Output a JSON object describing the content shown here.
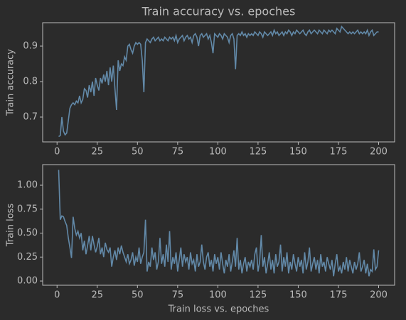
{
  "chart_data": [
    {
      "type": "line",
      "title": "Train accuracy vs. epoches",
      "ylabel": "Train accuracy",
      "color": "#6289a8",
      "xlim": [
        -8.95,
        209.95
      ],
      "ylim": [
        0.63,
        0.966
      ],
      "xticks": [
        0,
        25,
        50,
        75,
        100,
        125,
        150,
        175,
        200
      ],
      "yticks": [
        0.7,
        0.8,
        0.9
      ],
      "x": [
        1,
        2,
        3,
        4,
        5,
        6,
        7,
        8,
        9,
        10,
        11,
        12,
        13,
        14,
        15,
        16,
        17,
        18,
        19,
        20,
        21,
        22,
        23,
        24,
        25,
        26,
        27,
        28,
        29,
        30,
        31,
        32,
        33,
        34,
        35,
        36,
        37,
        38,
        39,
        40,
        41,
        42,
        43,
        44,
        45,
        46,
        47,
        48,
        49,
        50,
        51,
        52,
        53,
        54,
        55,
        56,
        57,
        58,
        59,
        60,
        61,
        62,
        63,
        64,
        65,
        66,
        67,
        68,
        69,
        70,
        71,
        72,
        73,
        74,
        75,
        76,
        77,
        78,
        79,
        80,
        81,
        82,
        83,
        84,
        85,
        86,
        87,
        88,
        89,
        90,
        91,
        92,
        93,
        94,
        95,
        96,
        97,
        98,
        99,
        100,
        101,
        102,
        103,
        104,
        105,
        106,
        107,
        108,
        109,
        110,
        111,
        112,
        113,
        114,
        115,
        116,
        117,
        118,
        119,
        120,
        121,
        122,
        123,
        124,
        125,
        126,
        127,
        128,
        129,
        130,
        131,
        132,
        133,
        134,
        135,
        136,
        137,
        138,
        139,
        140,
        141,
        142,
        143,
        144,
        145,
        146,
        147,
        148,
        149,
        150,
        151,
        152,
        153,
        154,
        155,
        156,
        157,
        158,
        159,
        160,
        161,
        162,
        163,
        164,
        165,
        166,
        167,
        168,
        169,
        170,
        171,
        172,
        173,
        174,
        175,
        176,
        177,
        178,
        179,
        180,
        181,
        182,
        183,
        184,
        185,
        186,
        187,
        188,
        189,
        190,
        191,
        192,
        193,
        194,
        195,
        196,
        197,
        198,
        199,
        200
      ],
      "values": [
        0.645,
        0.648,
        0.7,
        0.66,
        0.65,
        0.655,
        0.69,
        0.725,
        0.735,
        0.74,
        0.735,
        0.745,
        0.74,
        0.76,
        0.74,
        0.75,
        0.78,
        0.775,
        0.755,
        0.79,
        0.77,
        0.8,
        0.76,
        0.81,
        0.79,
        0.775,
        0.81,
        0.795,
        0.82,
        0.8,
        0.83,
        0.79,
        0.84,
        0.8,
        0.845,
        0.78,
        0.72,
        0.86,
        0.83,
        0.85,
        0.845,
        0.87,
        0.86,
        0.9,
        0.905,
        0.89,
        0.88,
        0.9,
        0.91,
        0.905,
        0.91,
        0.905,
        0.86,
        0.77,
        0.91,
        0.92,
        0.915,
        0.91,
        0.92,
        0.925,
        0.915,
        0.92,
        0.925,
        0.915,
        0.92,
        0.915,
        0.925,
        0.92,
        0.915,
        0.925,
        0.92,
        0.925,
        0.915,
        0.93,
        0.91,
        0.92,
        0.925,
        0.93,
        0.915,
        0.925,
        0.93,
        0.92,
        0.925,
        0.91,
        0.93,
        0.935,
        0.925,
        0.9,
        0.93,
        0.935,
        0.925,
        0.93,
        0.935,
        0.92,
        0.93,
        0.91,
        0.88,
        0.935,
        0.93,
        0.925,
        0.935,
        0.93,
        0.92,
        0.935,
        0.93,
        0.925,
        0.91,
        0.93,
        0.935,
        0.92,
        0.835,
        0.93,
        0.935,
        0.93,
        0.94,
        0.93,
        0.935,
        0.925,
        0.935,
        0.93,
        0.935,
        0.93,
        0.94,
        0.935,
        0.93,
        0.94,
        0.935,
        0.925,
        0.94,
        0.935,
        0.93,
        0.935,
        0.94,
        0.93,
        0.945,
        0.935,
        0.94,
        0.93,
        0.935,
        0.94,
        0.93,
        0.94,
        0.935,
        0.945,
        0.94,
        0.93,
        0.94,
        0.935,
        0.945,
        0.94,
        0.935,
        0.94,
        0.945,
        0.935,
        0.93,
        0.94,
        0.945,
        0.935,
        0.94,
        0.945,
        0.94,
        0.935,
        0.945,
        0.94,
        0.935,
        0.945,
        0.94,
        0.935,
        0.945,
        0.94,
        0.945,
        0.94,
        0.935,
        0.95,
        0.945,
        0.94,
        0.955,
        0.95,
        0.945,
        0.94,
        0.935,
        0.94,
        0.935,
        0.94,
        0.935,
        0.94,
        0.945,
        0.935,
        0.94,
        0.935,
        0.94,
        0.935,
        0.945,
        0.93,
        0.94,
        0.945,
        0.93,
        0.935,
        0.94,
        0.94
      ]
    },
    {
      "type": "line",
      "xlabel": "Train loss vs. epoches",
      "ylabel": "Train loss",
      "color": "#6289a8",
      "xlim": [
        -8.95,
        209.95
      ],
      "ylim": [
        -0.044,
        1.215
      ],
      "xticks": [
        0,
        25,
        50,
        75,
        100,
        125,
        150,
        175,
        200
      ],
      "yticks": [
        {
          "value": 0,
          "label": "0.00"
        },
        {
          "value": 0.25,
          "label": "0.25"
        },
        {
          "value": 0.5,
          "label": "0.50"
        },
        {
          "value": 0.75,
          "label": "0.75"
        },
        {
          "value": 1,
          "label": "1.00"
        }
      ],
      "x": [
        1,
        2,
        3,
        4,
        5,
        6,
        7,
        8,
        9,
        10,
        11,
        12,
        13,
        14,
        15,
        16,
        17,
        18,
        19,
        20,
        21,
        22,
        23,
        24,
        25,
        26,
        27,
        28,
        29,
        30,
        31,
        32,
        33,
        34,
        35,
        36,
        37,
        38,
        39,
        40,
        41,
        42,
        43,
        44,
        45,
        46,
        47,
        48,
        49,
        50,
        51,
        52,
        53,
        54,
        55,
        56,
        57,
        58,
        59,
        60,
        61,
        62,
        63,
        64,
        65,
        66,
        67,
        68,
        69,
        70,
        71,
        72,
        73,
        74,
        75,
        76,
        77,
        78,
        79,
        80,
        81,
        82,
        83,
        84,
        85,
        86,
        87,
        88,
        89,
        90,
        91,
        92,
        93,
        94,
        95,
        96,
        97,
        98,
        99,
        100,
        101,
        102,
        103,
        104,
        105,
        106,
        107,
        108,
        109,
        110,
        111,
        112,
        113,
        114,
        115,
        116,
        117,
        118,
        119,
        120,
        121,
        122,
        123,
        124,
        125,
        126,
        127,
        128,
        129,
        130,
        131,
        132,
        133,
        134,
        135,
        136,
        137,
        138,
        139,
        140,
        141,
        142,
        143,
        144,
        145,
        146,
        147,
        148,
        149,
        150,
        151,
        152,
        153,
        154,
        155,
        156,
        157,
        158,
        159,
        160,
        161,
        162,
        163,
        164,
        165,
        166,
        167,
        168,
        169,
        170,
        171,
        172,
        173,
        174,
        175,
        176,
        177,
        178,
        179,
        180,
        181,
        182,
        183,
        184,
        185,
        186,
        187,
        188,
        189,
        190,
        191,
        192,
        193,
        194,
        195,
        196,
        197,
        198,
        199,
        200
      ],
      "values": [
        1.16,
        0.64,
        0.68,
        0.67,
        0.62,
        0.58,
        0.45,
        0.35,
        0.24,
        0.67,
        0.55,
        0.48,
        0.52,
        0.45,
        0.5,
        0.32,
        0.42,
        0.28,
        0.37,
        0.47,
        0.32,
        0.47,
        0.38,
        0.3,
        0.36,
        0.45,
        0.28,
        0.35,
        0.25,
        0.4,
        0.33,
        0.3,
        0.35,
        0.15,
        0.25,
        0.32,
        0.22,
        0.35,
        0.28,
        0.37,
        0.3,
        0.25,
        0.2,
        0.28,
        0.18,
        0.22,
        0.3,
        0.16,
        0.25,
        0.2,
        0.35,
        0.18,
        0.25,
        0.3,
        0.64,
        0.1,
        0.2,
        0.15,
        0.35,
        0.22,
        0.3,
        0.12,
        0.2,
        0.45,
        0.18,
        0.28,
        0.15,
        0.38,
        0.2,
        0.52,
        0.12,
        0.25,
        0.18,
        0.3,
        0.1,
        0.22,
        0.35,
        0.15,
        0.28,
        0.2,
        0.25,
        0.12,
        0.3,
        0.18,
        0.22,
        0.1,
        0.28,
        0.15,
        0.2,
        0.38,
        0.2,
        0.12,
        0.25,
        0.3,
        0.15,
        0.22,
        0.1,
        0.28,
        0.18,
        0.25,
        0.12,
        0.3,
        0.18,
        0.08,
        0.22,
        0.15,
        0.28,
        0.1,
        0.2,
        0.32,
        0.15,
        0.45,
        0.12,
        0.22,
        0.08,
        0.18,
        0.25,
        0.1,
        0.2,
        0.15,
        0.22,
        0.12,
        0.28,
        0.35,
        0.1,
        0.2,
        0.48,
        0.15,
        0.25,
        0.08,
        0.18,
        0.3,
        0.12,
        0.22,
        0.08,
        0.28,
        0.15,
        0.2,
        0.38,
        0.1,
        0.25,
        0.15,
        0.3,
        0.08,
        0.2,
        0.12,
        0.28,
        0.18,
        0.1,
        0.25,
        0.15,
        0.22,
        0.08,
        0.3,
        0.12,
        0.2,
        0.35,
        0.1,
        0.18,
        0.25,
        0.12,
        0.22,
        0.08,
        0.28,
        0.15,
        0.2,
        0.1,
        0.25,
        0.18,
        0.12,
        0.22,
        0.05,
        0.18,
        0.28,
        0.1,
        0.15,
        0.08,
        0.2,
        0.12,
        0.25,
        0.1,
        0.22,
        0.15,
        0.08,
        0.2,
        0.12,
        0.18,
        0.3,
        0.1,
        0.15,
        0.22,
        0.08,
        0.18,
        0.05,
        0.12,
        0.1,
        0.33,
        0.12,
        0.15,
        0.32
      ]
    }
  ]
}
